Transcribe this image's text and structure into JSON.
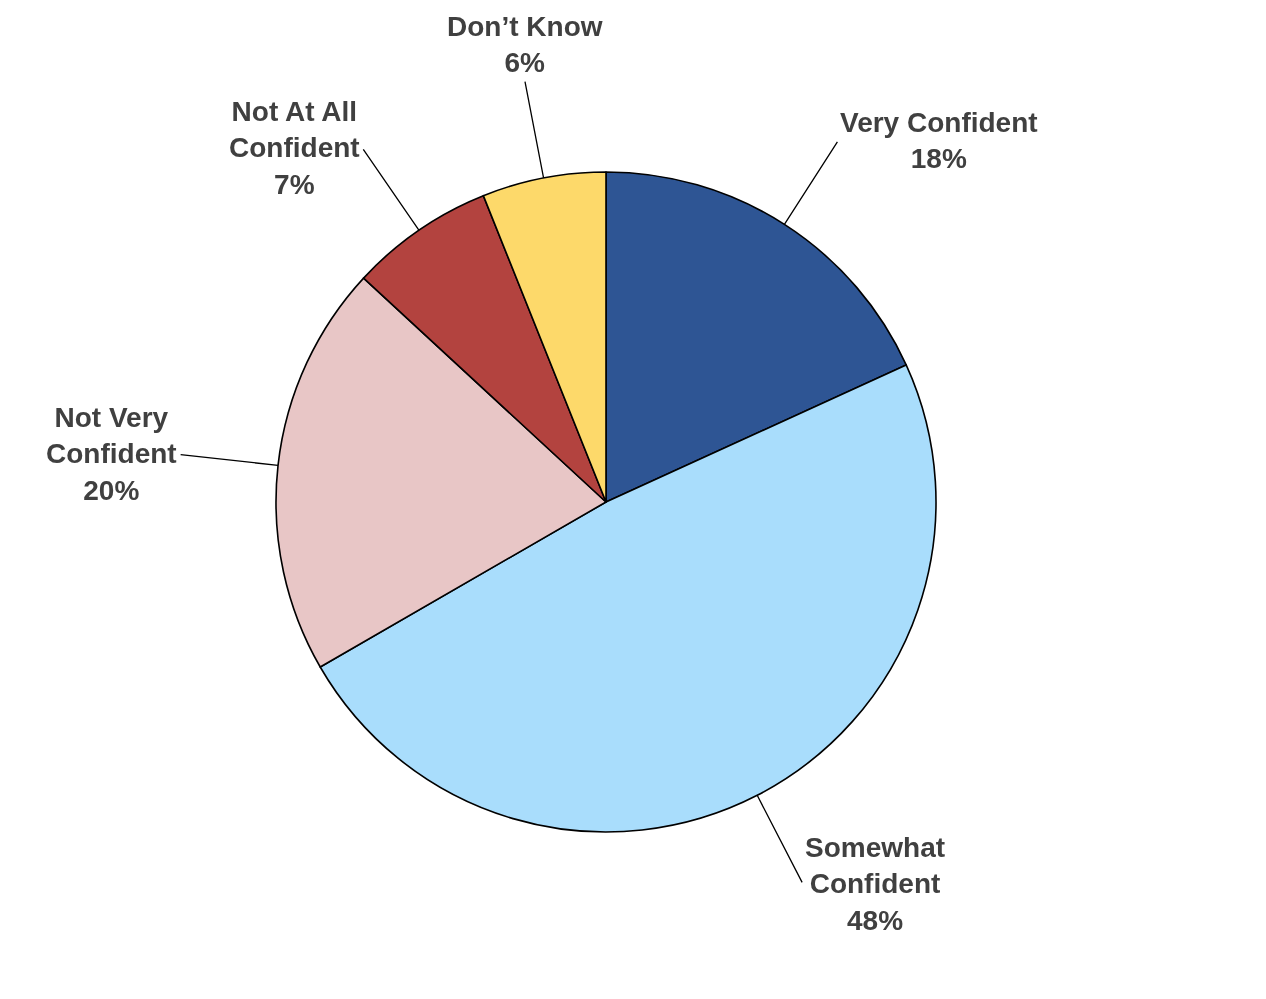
{
  "chart_data": {
    "type": "pie",
    "categories": [
      "Very Confident",
      "Somewhat\nConfident",
      "Not Very\nConfident",
      "Not At All\nConfident",
      "Don’t Know"
    ],
    "values": [
      18,
      48,
      20,
      7,
      6
    ],
    "value_labels": [
      "18%",
      "48%",
      "20%",
      "7%",
      "6%"
    ],
    "colors": [
      "#2e5594",
      "#a9ddfc",
      "#e8c6c6",
      "#b3433f",
      "#fdd96a"
    ]
  }
}
